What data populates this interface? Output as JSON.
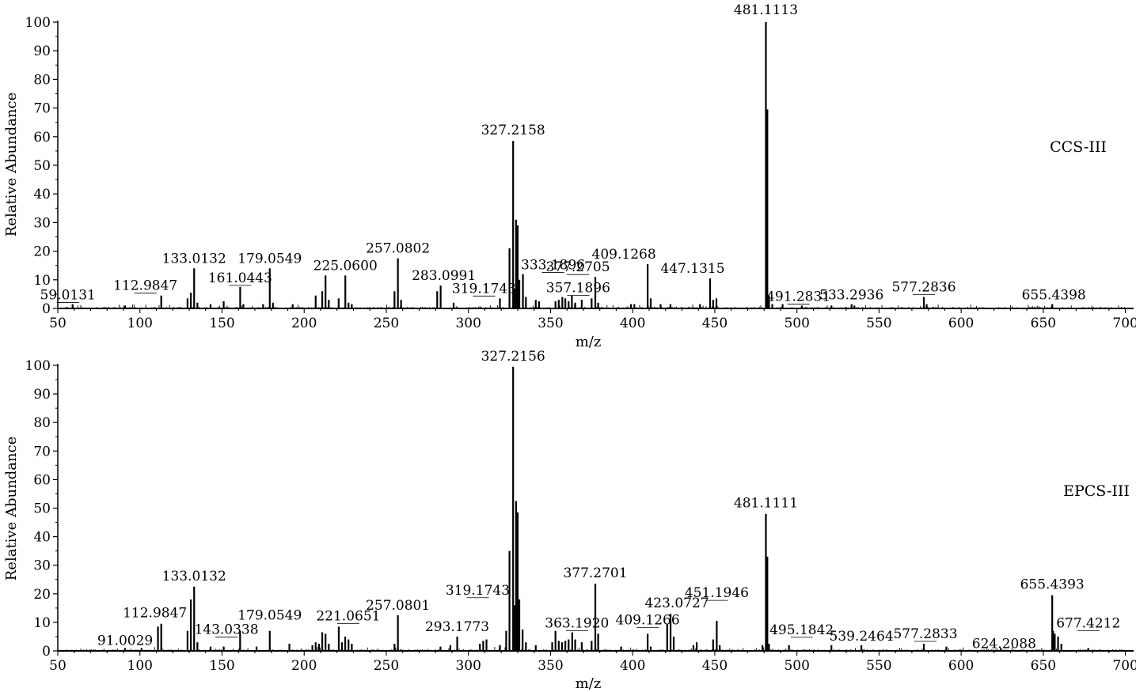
{
  "chart_data": [
    {
      "type": "bar",
      "name": "CCS-III",
      "xlabel": "m/z",
      "ylabel": "Relative Abundance",
      "xlim": [
        50,
        705
      ],
      "ylim": [
        0,
        100
      ],
      "xticks": [
        50,
        100,
        150,
        200,
        250,
        300,
        350,
        400,
        450,
        500,
        550,
        600,
        650,
        700
      ],
      "yticks": [
        0,
        10,
        20,
        30,
        40,
        50,
        60,
        70,
        80,
        90,
        100
      ],
      "peaks": [
        {
          "mz": 59.0131,
          "y": 1.5
        },
        {
          "mz": 91.0,
          "y": 1.0
        },
        {
          "mz": 112.9847,
          "y": 4.5
        },
        {
          "mz": 129.0,
          "y": 3.5
        },
        {
          "mz": 131.0,
          "y": 5.5
        },
        {
          "mz": 133.0132,
          "y": 14
        },
        {
          "mz": 135.0,
          "y": 2.0
        },
        {
          "mz": 143.0,
          "y": 1.5
        },
        {
          "mz": 151.0,
          "y": 2.5
        },
        {
          "mz": 161.0443,
          "y": 7.5
        },
        {
          "mz": 163.0,
          "y": 1.5
        },
        {
          "mz": 175.0,
          "y": 1.5
        },
        {
          "mz": 179.0549,
          "y": 14
        },
        {
          "mz": 181.0,
          "y": 2.0
        },
        {
          "mz": 193.0,
          "y": 1.5
        },
        {
          "mz": 207.0,
          "y": 4.5
        },
        {
          "mz": 211.0,
          "y": 6.0
        },
        {
          "mz": 213.0,
          "y": 11.5
        },
        {
          "mz": 215.0,
          "y": 3.0
        },
        {
          "mz": 221.0,
          "y": 3.5
        },
        {
          "mz": 225.06,
          "y": 11.5
        },
        {
          "mz": 227.0,
          "y": 2.0
        },
        {
          "mz": 229.0,
          "y": 1.5
        },
        {
          "mz": 255.0,
          "y": 6.0
        },
        {
          "mz": 257.0802,
          "y": 17.5
        },
        {
          "mz": 259.0,
          "y": 3.0
        },
        {
          "mz": 281.0,
          "y": 6.0
        },
        {
          "mz": 283.0991,
          "y": 8.0
        },
        {
          "mz": 291.0,
          "y": 2.0
        },
        {
          "mz": 319.1743,
          "y": 3.5
        },
        {
          "mz": 325.0,
          "y": 21
        },
        {
          "mz": 327.2158,
          "y": 58.5
        },
        {
          "mz": 328.0,
          "y": 7.0
        },
        {
          "mz": 329.0,
          "y": 31
        },
        {
          "mz": 330.0,
          "y": 29
        },
        {
          "mz": 331.0,
          "y": 10
        },
        {
          "mz": 333.1896,
          "y": 12
        },
        {
          "mz": 335.0,
          "y": 4.0
        },
        {
          "mz": 341.0,
          "y": 3.0
        },
        {
          "mz": 343.0,
          "y": 2.5
        },
        {
          "mz": 353.0,
          "y": 2.5
        },
        {
          "mz": 355.0,
          "y": 3.0
        },
        {
          "mz": 357.1896,
          "y": 4.0
        },
        {
          "mz": 359.0,
          "y": 3.5
        },
        {
          "mz": 361.0,
          "y": 2.5
        },
        {
          "mz": 363.0,
          "y": 4.5
        },
        {
          "mz": 365.0,
          "y": 2.0
        },
        {
          "mz": 369.0,
          "y": 3.0
        },
        {
          "mz": 375.0,
          "y": 3.5
        },
        {
          "mz": 377.2705,
          "y": 11
        },
        {
          "mz": 379.0,
          "y": 2.0
        },
        {
          "mz": 399.0,
          "y": 1.5
        },
        {
          "mz": 401.0,
          "y": 1.5
        },
        {
          "mz": 409.1268,
          "y": 15.5
        },
        {
          "mz": 411.0,
          "y": 3.5
        },
        {
          "mz": 417.0,
          "y": 1.5
        },
        {
          "mz": 423.0,
          "y": 1.5
        },
        {
          "mz": 441.0,
          "y": 1.5
        },
        {
          "mz": 447.1315,
          "y": 10.5
        },
        {
          "mz": 449.0,
          "y": 3.0
        },
        {
          "mz": 451.0,
          "y": 3.5
        },
        {
          "mz": 481.1113,
          "y": 100
        },
        {
          "mz": 482.0,
          "y": 69.5
        },
        {
          "mz": 483.0,
          "y": 4.5
        },
        {
          "mz": 485.0,
          "y": 1.5
        },
        {
          "mz": 491.2831,
          "y": 1.5
        },
        {
          "mz": 503.0,
          "y": 1.0
        },
        {
          "mz": 521.0,
          "y": 1.0
        },
        {
          "mz": 533.2936,
          "y": 1.5
        },
        {
          "mz": 535.0,
          "y": 1.0
        },
        {
          "mz": 577.2836,
          "y": 4.0
        },
        {
          "mz": 579.0,
          "y": 1.5
        },
        {
          "mz": 655.4398,
          "y": 1.5
        }
      ],
      "labels": [
        {
          "text": "59.0131",
          "mz": 59.0131,
          "y": 1.5
        },
        {
          "text": "112.9847",
          "mz": 112.9847,
          "y": 4.5
        },
        {
          "text": "133.0132",
          "mz": 133.0132,
          "y": 14
        },
        {
          "text": "161.0443",
          "mz": 161.0443,
          "y": 7.5
        },
        {
          "text": "179.0549",
          "mz": 179.0549,
          "y": 14
        },
        {
          "text": "225.0600",
          "mz": 225.06,
          "y": 11.5
        },
        {
          "text": "257.0802",
          "mz": 257.0802,
          "y": 17.5
        },
        {
          "text": "283.0991",
          "mz": 283.0991,
          "y": 8.0
        },
        {
          "text": "319.1743",
          "mz": 319.1743,
          "y": 3.5
        },
        {
          "text": "327.2158",
          "mz": 327.2158,
          "y": 58.5
        },
        {
          "text": "333.1896",
          "mz": 333.1896,
          "y": 12
        },
        {
          "text": "357.1896",
          "mz": 357.1896,
          "y": 4.0
        },
        {
          "text": "377.2705",
          "mz": 377.2705,
          "y": 11
        },
        {
          "text": "409.1268",
          "mz": 409.1268,
          "y": 15.5
        },
        {
          "text": "447.1315",
          "mz": 447.1315,
          "y": 10.5
        },
        {
          "text": "481.1113",
          "mz": 481.1113,
          "y": 100
        },
        {
          "text": "491.2831",
          "mz": 491.2831,
          "y": 1.5
        },
        {
          "text": "533.2936",
          "mz": 533.2936,
          "y": 1.5
        },
        {
          "text": "577.2836",
          "mz": 577.2836,
          "y": 4.0
        },
        {
          "text": "655.4398",
          "mz": 655.4398,
          "y": 1.5
        }
      ]
    },
    {
      "type": "bar",
      "name": "EPCS-III",
      "xlabel": "m/z",
      "ylabel": "Relative Abundance",
      "xlim": [
        50,
        705
      ],
      "ylim": [
        0,
        100
      ],
      "xticks": [
        50,
        100,
        150,
        200,
        250,
        300,
        350,
        400,
        450,
        500,
        550,
        600,
        650,
        700
      ],
      "yticks": [
        0,
        10,
        20,
        30,
        40,
        50,
        60,
        70,
        80,
        90,
        100
      ],
      "peaks": [
        {
          "mz": 91.0029,
          "y": 1.0
        },
        {
          "mz": 101.0,
          "y": 1.0
        },
        {
          "mz": 111.0,
          "y": 8.5
        },
        {
          "mz": 112.9847,
          "y": 9.5
        },
        {
          "mz": 129.0,
          "y": 7.0
        },
        {
          "mz": 131.0,
          "y": 18
        },
        {
          "mz": 133.0132,
          "y": 22.5
        },
        {
          "mz": 135.0,
          "y": 3.0
        },
        {
          "mz": 143.0338,
          "y": 1.5
        },
        {
          "mz": 151.0,
          "y": 1.5
        },
        {
          "mz": 161.0,
          "y": 7.0
        },
        {
          "mz": 171.0,
          "y": 1.5
        },
        {
          "mz": 179.0549,
          "y": 7.0
        },
        {
          "mz": 191.0,
          "y": 2.5
        },
        {
          "mz": 205.0,
          "y": 2.0
        },
        {
          "mz": 207.0,
          "y": 3.0
        },
        {
          "mz": 209.0,
          "y": 2.5
        },
        {
          "mz": 211.0,
          "y": 6.5
        },
        {
          "mz": 213.0,
          "y": 6.0
        },
        {
          "mz": 215.0,
          "y": 2.5
        },
        {
          "mz": 221.0651,
          "y": 8.5
        },
        {
          "mz": 223.0,
          "y": 3.0
        },
        {
          "mz": 225.0,
          "y": 5.0
        },
        {
          "mz": 227.0,
          "y": 4.0
        },
        {
          "mz": 229.0,
          "y": 2.5
        },
        {
          "mz": 255.0,
          "y": 2.5
        },
        {
          "mz": 257.0801,
          "y": 12.5
        },
        {
          "mz": 283.0,
          "y": 1.5
        },
        {
          "mz": 289.0,
          "y": 2.0
        },
        {
          "mz": 293.1773,
          "y": 5.0
        },
        {
          "mz": 307.0,
          "y": 2.5
        },
        {
          "mz": 309.0,
          "y": 3.5
        },
        {
          "mz": 311.0,
          "y": 4.0
        },
        {
          "mz": 319.1743,
          "y": 2.0
        },
        {
          "mz": 323.0,
          "y": 7.0
        },
        {
          "mz": 325.0,
          "y": 35
        },
        {
          "mz": 327.2156,
          "y": 99.5
        },
        {
          "mz": 328.0,
          "y": 16
        },
        {
          "mz": 329.0,
          "y": 52.5
        },
        {
          "mz": 330.0,
          "y": 48.5
        },
        {
          "mz": 331.0,
          "y": 18
        },
        {
          "mz": 333.0,
          "y": 7.5
        },
        {
          "mz": 335.0,
          "y": 3.0
        },
        {
          "mz": 341.0,
          "y": 2.0
        },
        {
          "mz": 351.0,
          "y": 3.0
        },
        {
          "mz": 353.0,
          "y": 7.0
        },
        {
          "mz": 355.0,
          "y": 3.5
        },
        {
          "mz": 357.0,
          "y": 3.0
        },
        {
          "mz": 359.0,
          "y": 3.5
        },
        {
          "mz": 361.0,
          "y": 4.0
        },
        {
          "mz": 363.192,
          "y": 6.5
        },
        {
          "mz": 365.0,
          "y": 4.0
        },
        {
          "mz": 369.0,
          "y": 3.0
        },
        {
          "mz": 375.0,
          "y": 3.5
        },
        {
          "mz": 377.2701,
          "y": 23.5
        },
        {
          "mz": 379.0,
          "y": 6.0
        },
        {
          "mz": 393.0,
          "y": 1.5
        },
        {
          "mz": 409.1266,
          "y": 6.0
        },
        {
          "mz": 411.0,
          "y": 1.5
        },
        {
          "mz": 421.0,
          "y": 9.5
        },
        {
          "mz": 423.0727,
          "y": 13
        },
        {
          "mz": 425.0,
          "y": 5.0
        },
        {
          "mz": 437.0,
          "y": 2.0
        },
        {
          "mz": 439.0,
          "y": 3.0
        },
        {
          "mz": 449.0,
          "y": 4.0
        },
        {
          "mz": 451.1946,
          "y": 10.5
        },
        {
          "mz": 453.0,
          "y": 2.0
        },
        {
          "mz": 479.0,
          "y": 2.0
        },
        {
          "mz": 481.1111,
          "y": 48
        },
        {
          "mz": 482.0,
          "y": 33
        },
        {
          "mz": 483.0,
          "y": 2.5
        },
        {
          "mz": 495.1842,
          "y": 2.0
        },
        {
          "mz": 521.0,
          "y": 2.0
        },
        {
          "mz": 539.2464,
          "y": 2.0
        },
        {
          "mz": 577.2833,
          "y": 2.5
        },
        {
          "mz": 591.0,
          "y": 1.5
        },
        {
          "mz": 624.2088,
          "y": 1.0
        },
        {
          "mz": 655.4393,
          "y": 19.5
        },
        {
          "mz": 656.0,
          "y": 7.0
        },
        {
          "mz": 657.0,
          "y": 6.0
        },
        {
          "mz": 659.0,
          "y": 5.0
        },
        {
          "mz": 661.0,
          "y": 2.5
        },
        {
          "mz": 677.4212,
          "y": 1.0
        }
      ],
      "labels": [
        {
          "text": "91.0029",
          "mz": 91.0029,
          "y": 1.0
        },
        {
          "text": "112.9847",
          "mz": 112.9847,
          "y": 9.5
        },
        {
          "text": "133.0132",
          "mz": 133.0132,
          "y": 22.5
        },
        {
          "text": "143.0338",
          "mz": 143.0338,
          "y": 1.5
        },
        {
          "text": "179.0549",
          "mz": 179.0549,
          "y": 7.0
        },
        {
          "text": "221.0651",
          "mz": 221.0651,
          "y": 8.5
        },
        {
          "text": "257.0801",
          "mz": 257.0801,
          "y": 12.5
        },
        {
          "text": "293.1773",
          "mz": 293.1773,
          "y": 5.0
        },
        {
          "text": "319.1743",
          "mz": 319.1743,
          "y": 2.0
        },
        {
          "text": "327.2156",
          "mz": 327.2156,
          "y": 99.5
        },
        {
          "text": "363.1920",
          "mz": 363.192,
          "y": 6.5
        },
        {
          "text": "377.2701",
          "mz": 377.2701,
          "y": 23.5
        },
        {
          "text": "409.1266",
          "mz": 409.1266,
          "y": 6.0
        },
        {
          "text": "423.0727",
          "mz": 423.0727,
          "y": 13
        },
        {
          "text": "451.1946",
          "mz": 451.1946,
          "y": 10.5
        },
        {
          "text": "481.1111",
          "mz": 481.1111,
          "y": 48
        },
        {
          "text": "495.1842",
          "mz": 495.1842,
          "y": 2.0
        },
        {
          "text": "539.2464",
          "mz": 539.2464,
          "y": 2.0
        },
        {
          "text": "577.2833",
          "mz": 577.2833,
          "y": 2.5
        },
        {
          "text": "624.2088",
          "mz": 624.2088,
          "y": 1.0
        },
        {
          "text": "655.4393",
          "mz": 655.4393,
          "y": 19.5
        },
        {
          "text": "677.4212",
          "mz": 677.4212,
          "y": 1.0
        }
      ]
    }
  ],
  "colors": {
    "line": "#000000",
    "background": "#ffffff"
  }
}
